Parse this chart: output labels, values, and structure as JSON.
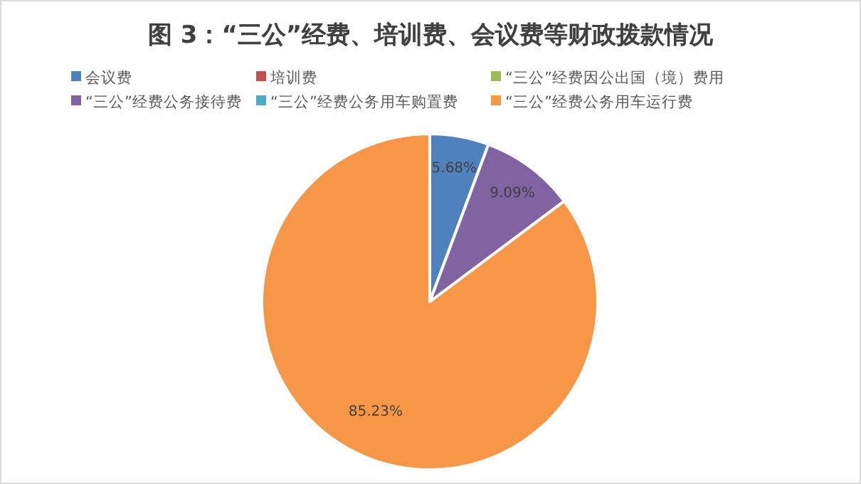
{
  "chart_data": {
    "type": "pie",
    "title": "图 3：“三公”经费、培训费、会议费等财政拨款情况",
    "categories": [
      "会议费",
      "培训费",
      "“三公”经费因公出国（境）费用",
      "“三公”经费公务接待费",
      "“三公”经费公务用车购置费",
      "“三公”经费公务用车运行费"
    ],
    "values": [
      5.68,
      0,
      0,
      9.09,
      0,
      85.23
    ],
    "colors": [
      "#4f81bd",
      "#c0504d",
      "#9bbb59",
      "#8064a2",
      "#4bacc6",
      "#f79646"
    ],
    "value_labels": [
      "5.68%",
      null,
      null,
      "9.09%",
      null,
      "85.23%"
    ],
    "legend": "top"
  }
}
